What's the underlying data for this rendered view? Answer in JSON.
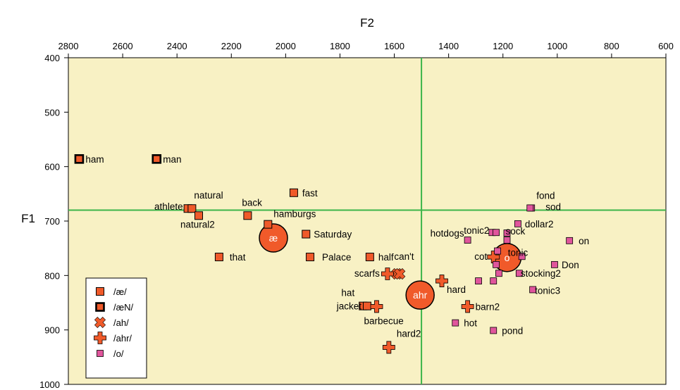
{
  "chart_data": {
    "type": "scatter",
    "title": "",
    "xlabel": "F2",
    "ylabel": "F1",
    "xlim": [
      2800,
      600
    ],
    "ylim": [
      1000,
      400
    ],
    "x_reversed": true,
    "y_reversed": true,
    "x_ticks": [
      "2800",
      "2600",
      "2400",
      "2200",
      "2000",
      "1800",
      "1600",
      "1400",
      "1200",
      "1000",
      "800",
      "600"
    ],
    "y_ticks": [
      "400",
      "500",
      "600",
      "700",
      "800",
      "900",
      "1000"
    ],
    "reference_lines": [
      {
        "orientation": "vertical",
        "x": 1500
      },
      {
        "orientation": "horizontal",
        "y": 680
      }
    ],
    "plot_background": "#f8f1c4",
    "line_color": "#3cb54a",
    "legend_position": "bottom-left",
    "series": [
      {
        "name": "/æ/",
        "marker": "square",
        "color": "#f05a2a",
        "points": [
          {
            "x": 2360,
            "y": 677,
            "label": "athlete"
          },
          {
            "x": 2345,
            "y": 677,
            "label": "natural"
          },
          {
            "x": 2320,
            "y": 690,
            "label": "natural2"
          },
          {
            "x": 2140,
            "y": 690,
            "label": "back"
          },
          {
            "x": 1970,
            "y": 648,
            "label": "fast"
          },
          {
            "x": 2065,
            "y": 706,
            "label": "hamburgs"
          },
          {
            "x": 1925,
            "y": 724,
            "label": "Saturday"
          },
          {
            "x": 2245,
            "y": 766,
            "label": "that"
          },
          {
            "x": 1910,
            "y": 766,
            "label": "Palace"
          },
          {
            "x": 1690,
            "y": 766,
            "label": "half"
          },
          {
            "x": 1715,
            "y": 856,
            "label": "hat"
          },
          {
            "x": 1700,
            "y": 856,
            "label": "jacket"
          }
        ]
      },
      {
        "name": "/æN/",
        "marker": "square-dark",
        "color": "#f05a2a",
        "points": [
          {
            "x": 2760,
            "y": 586,
            "label": "ham"
          },
          {
            "x": 2475,
            "y": 586,
            "label": "man"
          }
        ]
      },
      {
        "name": "/ah/",
        "marker": "x",
        "color": "#f05a2a",
        "points": [
          {
            "x": 1590,
            "y": 797,
            "label": "can't"
          },
          {
            "x": 1580,
            "y": 797,
            "label": ""
          }
        ]
      },
      {
        "name": "/ahr/",
        "marker": "plus",
        "color": "#f05a2a",
        "points": [
          {
            "x": 1625,
            "y": 797,
            "label": "scarfs"
          },
          {
            "x": 1425,
            "y": 810,
            "label": "hard"
          },
          {
            "x": 1665,
            "y": 857,
            "label": "barbecue"
          },
          {
            "x": 1330,
            "y": 857,
            "label": "barn2"
          },
          {
            "x": 1620,
            "y": 932,
            "label": "hard2"
          },
          {
            "x": 1235,
            "y": 766,
            "label": "cot"
          }
        ]
      },
      {
        "name": "/o/",
        "marker": "square-small",
        "color": "#e0559c",
        "points": [
          {
            "x": 1095,
            "y": 676,
            "label": "fond"
          },
          {
            "x": 1100,
            "y": 676,
            "label": "sod"
          },
          {
            "x": 1145,
            "y": 705,
            "label": "dollar2"
          },
          {
            "x": 1240,
            "y": 721,
            "label": "tonic2"
          },
          {
            "x": 1225,
            "y": 721,
            "label": ""
          },
          {
            "x": 1185,
            "y": 722,
            "label": "sock"
          },
          {
            "x": 1330,
            "y": 735,
            "label": "hotdogs"
          },
          {
            "x": 1185,
            "y": 735,
            "label": ""
          },
          {
            "x": 955,
            "y": 736,
            "label": "on"
          },
          {
            "x": 1220,
            "y": 755,
            "label": ""
          },
          {
            "x": 1130,
            "y": 765,
            "label": "tonic"
          },
          {
            "x": 1225,
            "y": 780,
            "label": ""
          },
          {
            "x": 1010,
            "y": 780,
            "label": "Don"
          },
          {
            "x": 1140,
            "y": 796,
            "label": "stocking2"
          },
          {
            "x": 1215,
            "y": 796,
            "label": ""
          },
          {
            "x": 1290,
            "y": 810,
            "label": ""
          },
          {
            "x": 1235,
            "y": 810,
            "label": ""
          },
          {
            "x": 1090,
            "y": 826,
            "label": "tonic3"
          },
          {
            "x": 1375,
            "y": 887,
            "label": "hot"
          },
          {
            "x": 1235,
            "y": 901,
            "label": "pond"
          }
        ]
      }
    ],
    "means": [
      {
        "label": "æ",
        "x": 2045,
        "y": 731
      },
      {
        "label": "ahr",
        "x": 1505,
        "y": 836
      },
      {
        "label": "o",
        "x": 1185,
        "y": 767
      }
    ]
  }
}
